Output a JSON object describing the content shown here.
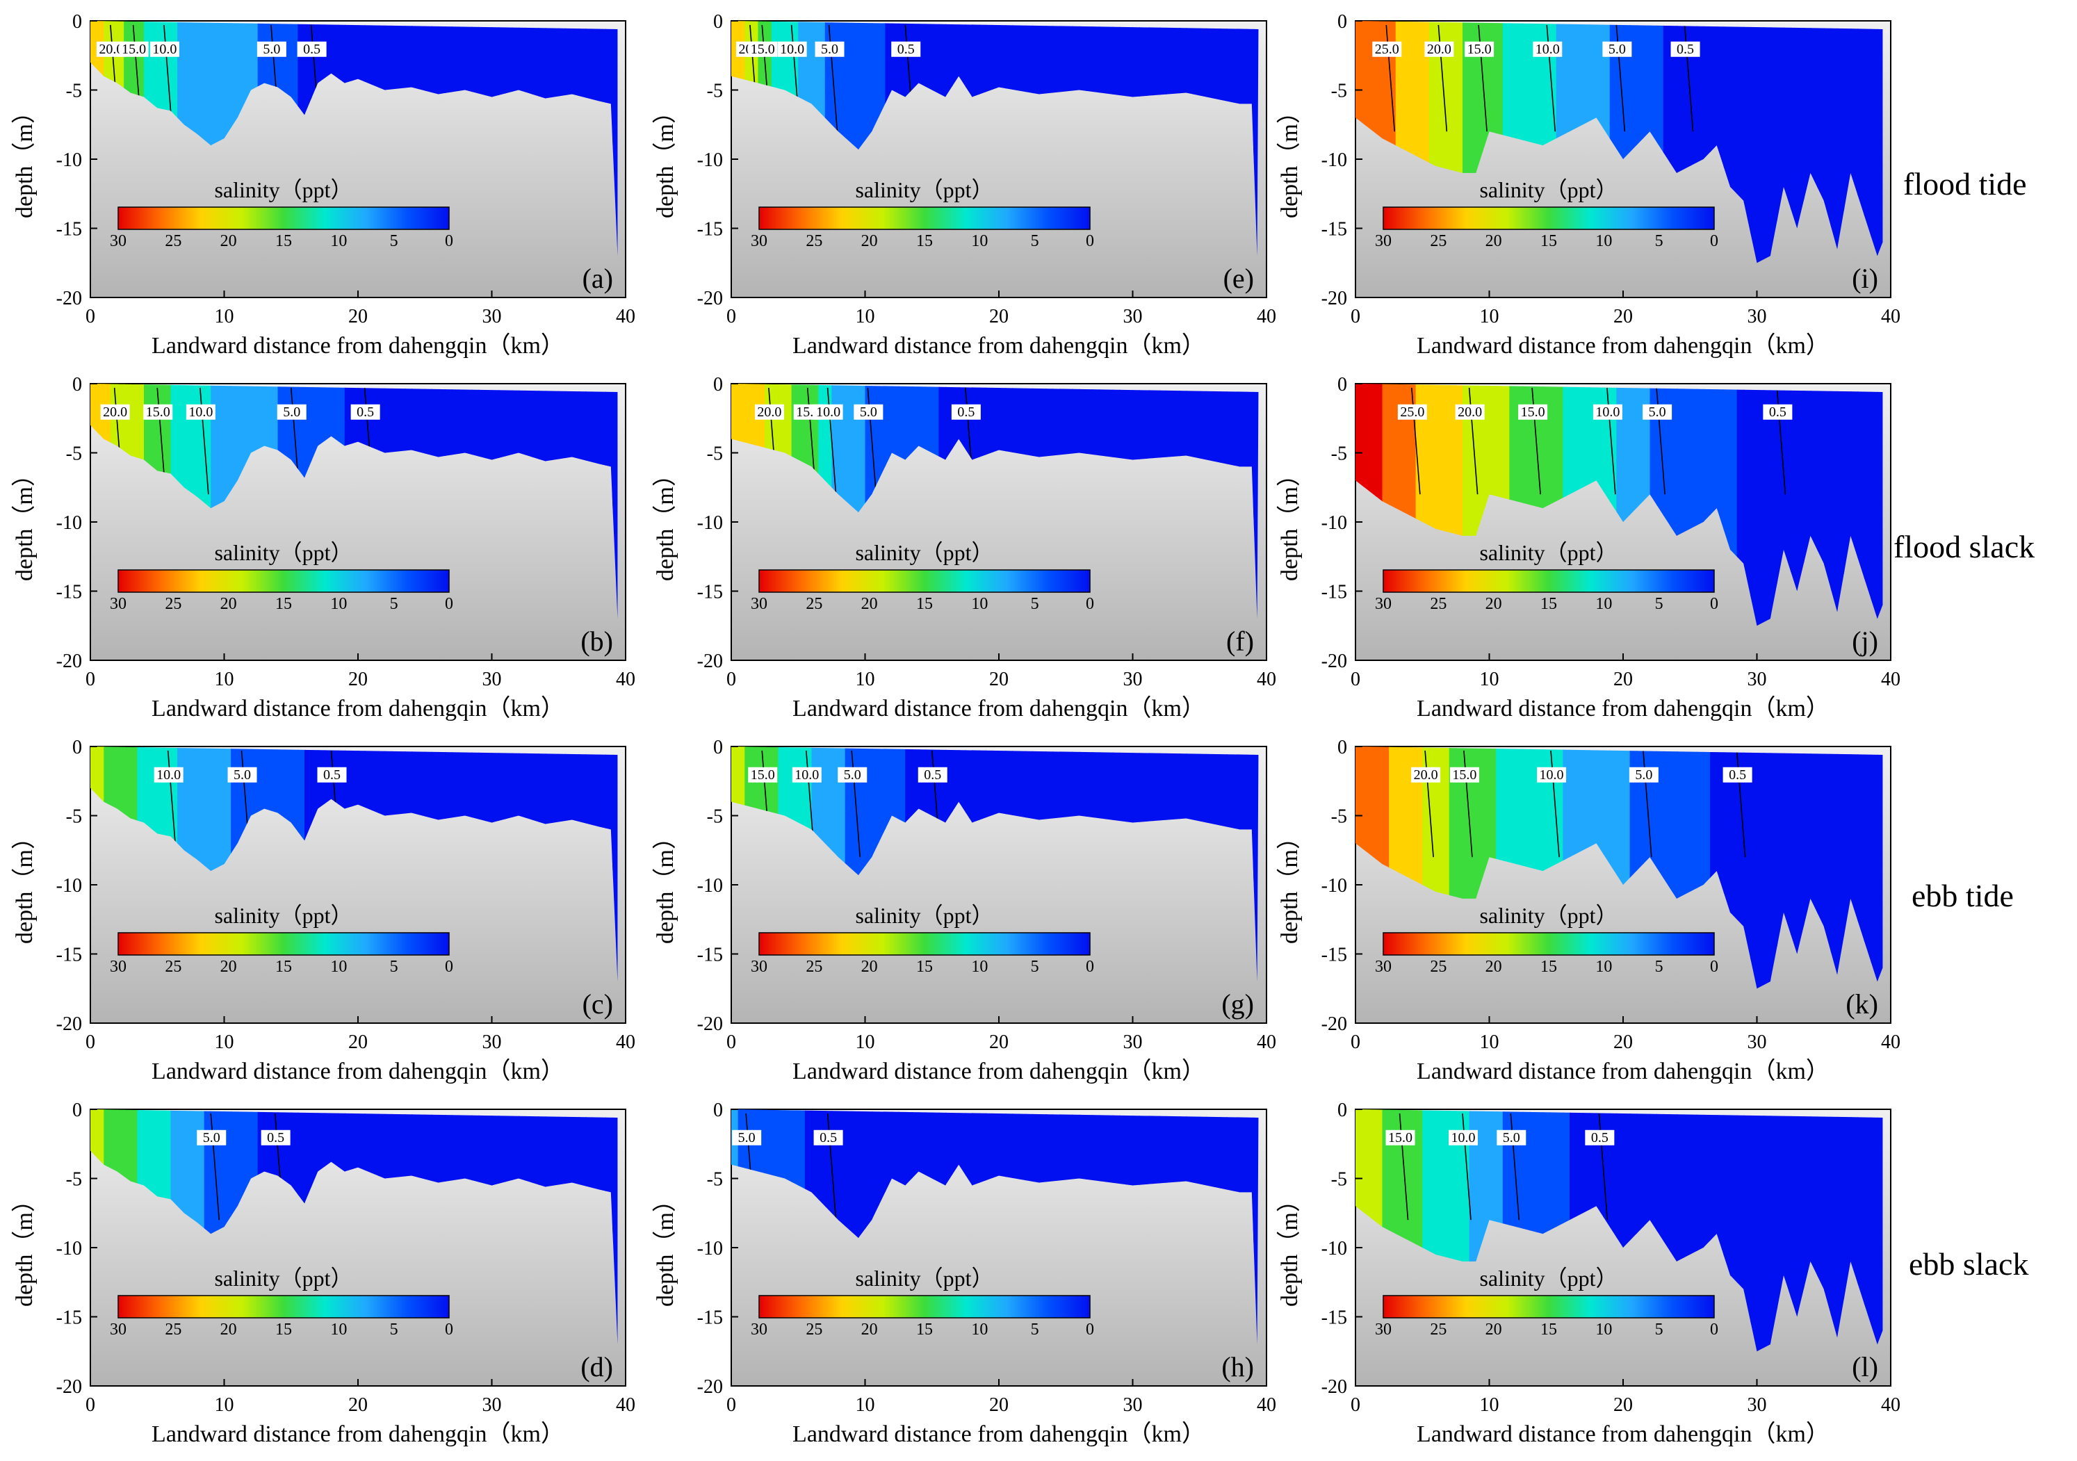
{
  "row_labels": [
    "flood tide",
    "flood slack",
    "ebb tide",
    "ebb slack"
  ],
  "common": {
    "xlabel": "Landward distance from dahengqin（km）",
    "ylabel": "depth（m）",
    "colorbar_title": "salinity（ppt）",
    "colorbar_ticks": [
      "30",
      "25",
      "20",
      "15",
      "10",
      "5",
      "0"
    ],
    "x_ticks": [
      "0",
      "10",
      "20",
      "30",
      "40"
    ],
    "y_ticks": [
      "0",
      "-5",
      "-10",
      "-15",
      "-20"
    ],
    "colors": {
      "bed_top": "#f0f0f0",
      "bed_bottom": "#b4b4b4",
      "colormap": [
        "#e60000",
        "#ff6a00",
        "#ffd200",
        "#c8f000",
        "#3cdc3c",
        "#00e8d0",
        "#20a8ff",
        "#0050ff",
        "#0010f0"
      ]
    }
  },
  "chart_data": [
    {
      "panel": "(a)",
      "type": "heatmap",
      "row": "flood tide",
      "col": 0,
      "xlim": [
        0,
        40
      ],
      "ylim": [
        -20,
        0
      ],
      "contours": [
        {
          "label": "20.0",
          "km": 1.5
        },
        {
          "label": "15.0",
          "km": 3.2
        },
        {
          "label": "10.0",
          "km": 5.5
        },
        {
          "label": "5.0",
          "km": 13.5
        },
        {
          "label": "0.5",
          "km": 16.5
        }
      ],
      "max_depth_km": [
        [
          0,
          -3
        ],
        [
          3,
          -5
        ],
        [
          6,
          -6.5
        ],
        [
          9,
          -9
        ],
        [
          12,
          -5
        ],
        [
          16,
          -7
        ],
        [
          20,
          -4.5
        ],
        [
          38,
          -6
        ],
        [
          39.3,
          -17
        ]
      ]
    },
    {
      "panel": "(b)",
      "type": "heatmap",
      "row": "flood slack",
      "col": 0,
      "xlim": [
        0,
        40
      ],
      "ylim": [
        -20,
        0
      ],
      "contours": [
        {
          "label": "20.0",
          "km": 1.8
        },
        {
          "label": "15.0",
          "km": 5.0
        },
        {
          "label": "10.0",
          "km": 8.2
        },
        {
          "label": "5.0",
          "km": 15.0
        },
        {
          "label": "0.5",
          "km": 20.5
        }
      ]
    },
    {
      "panel": "(c)",
      "type": "heatmap",
      "row": "ebb tide",
      "col": 0,
      "xlim": [
        0,
        40
      ],
      "ylim": [
        -20,
        0
      ],
      "contours": [
        {
          "label": "10.0",
          "km": 5.8
        },
        {
          "label": "5.0",
          "km": 11.3
        },
        {
          "label": "0.5",
          "km": 18.0
        }
      ]
    },
    {
      "panel": "(d)",
      "type": "heatmap",
      "row": "ebb slack",
      "col": 0,
      "xlim": [
        0,
        40
      ],
      "ylim": [
        -20,
        0
      ],
      "contours": [
        {
          "label": "5.0",
          "km": 9.0
        },
        {
          "label": "0.5",
          "km": 13.8
        }
      ]
    },
    {
      "panel": "(e)",
      "type": "heatmap",
      "row": "flood tide",
      "col": 1,
      "xlim": [
        0,
        40
      ],
      "ylim": [
        -20,
        0
      ],
      "contours": [
        {
          "label": "20.0",
          "km": 1.4
        },
        {
          "label": "15.0",
          "km": 2.3
        },
        {
          "label": "10.0",
          "km": 4.5
        },
        {
          "label": "5.0",
          "km": 7.3
        },
        {
          "label": "0.5",
          "km": 13.0
        }
      ]
    },
    {
      "panel": "(f)",
      "type": "heatmap",
      "row": "flood slack",
      "col": 1,
      "xlim": [
        0,
        40
      ],
      "ylim": [
        -20,
        0
      ],
      "contours": [
        {
          "label": "20.0",
          "km": 2.8
        },
        {
          "label": "15.0",
          "km": 5.7
        },
        {
          "label": "10.0",
          "km": 7.2
        },
        {
          "label": "5.0",
          "km": 10.2
        },
        {
          "label": "0.5",
          "km": 17.5
        }
      ]
    },
    {
      "panel": "(g)",
      "type": "heatmap",
      "row": "ebb tide",
      "col": 1,
      "xlim": [
        0,
        40
      ],
      "ylim": [
        -20,
        0
      ],
      "contours": [
        {
          "label": "15.0",
          "km": 2.3
        },
        {
          "label": "10.0",
          "km": 5.6
        },
        {
          "label": "5.0",
          "km": 9.0
        },
        {
          "label": "0.5",
          "km": 15.0
        }
      ]
    },
    {
      "panel": "(h)",
      "type": "heatmap",
      "row": "ebb slack",
      "col": 1,
      "xlim": [
        0,
        40
      ],
      "ylim": [
        -20,
        0
      ],
      "contours": [
        {
          "label": "5.0",
          "km": 1.1
        },
        {
          "label": "0.5",
          "km": 7.2
        }
      ]
    },
    {
      "panel": "(i)",
      "type": "heatmap",
      "row": "flood tide",
      "col": 2,
      "xlim": [
        0,
        40
      ],
      "ylim": [
        -20,
        0
      ],
      "contours": [
        {
          "label": "25.0",
          "km": 2.3
        },
        {
          "label": "20.0",
          "km": 6.2
        },
        {
          "label": "15.0",
          "km": 9.2
        },
        {
          "label": "10.0",
          "km": 14.3
        },
        {
          "label": "5.0",
          "km": 19.5
        },
        {
          "label": "0.5",
          "km": 24.6
        }
      ]
    },
    {
      "panel": "(j)",
      "type": "heatmap",
      "row": "flood slack",
      "col": 2,
      "xlim": [
        0,
        40
      ],
      "ylim": [
        -20,
        0
      ],
      "contours": [
        {
          "label": "25.0",
          "km": 4.2
        },
        {
          "label": "20.0",
          "km": 8.5
        },
        {
          "label": "15.0",
          "km": 13.2
        },
        {
          "label": "10.0",
          "km": 18.8
        },
        {
          "label": "5.0",
          "km": 22.5
        },
        {
          "label": "0.5",
          "km": 31.5
        }
      ]
    },
    {
      "panel": "(k)",
      "type": "heatmap",
      "row": "ebb tide",
      "col": 2,
      "xlim": [
        0,
        40
      ],
      "ylim": [
        -20,
        0
      ],
      "contours": [
        {
          "label": "20.0",
          "km": 5.2
        },
        {
          "label": "15.0",
          "km": 8.1
        },
        {
          "label": "10.0",
          "km": 14.6
        },
        {
          "label": "5.0",
          "km": 21.5
        },
        {
          "label": "0.5",
          "km": 28.5
        }
      ]
    },
    {
      "panel": "(l)",
      "type": "heatmap",
      "row": "ebb slack",
      "col": 2,
      "xlim": [
        0,
        40
      ],
      "ylim": [
        -20,
        0
      ],
      "contours": [
        {
          "label": "15.0",
          "km": 3.3
        },
        {
          "label": "10.0",
          "km": 8.0
        },
        {
          "label": "5.0",
          "km": 11.6
        },
        {
          "label": "0.5",
          "km": 18.2
        }
      ]
    }
  ]
}
